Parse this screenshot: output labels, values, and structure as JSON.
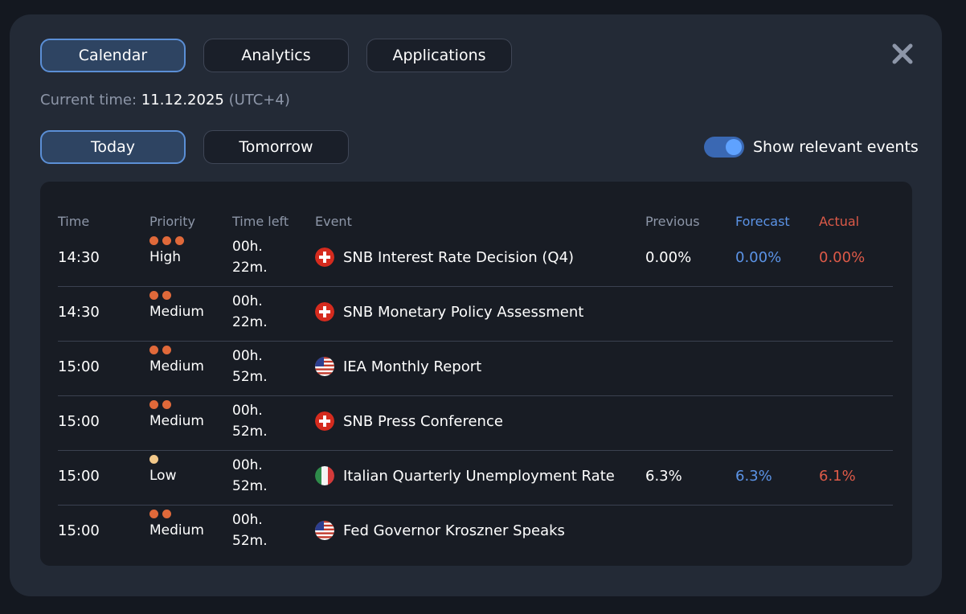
{
  "tabs": [
    {
      "label": "Calendar",
      "active": true
    },
    {
      "label": "Analytics",
      "active": false
    },
    {
      "label": "Applications",
      "active": false
    }
  ],
  "close_icon": "close-icon",
  "current_time": {
    "label": "Current time:",
    "date": "11.12.2025",
    "tz": "(UTC+4)"
  },
  "day_tabs": [
    {
      "label": "Today",
      "active": true
    },
    {
      "label": "Tomorrow",
      "active": false
    }
  ],
  "toggle": {
    "label": "Show relevant events",
    "on": true
  },
  "table": {
    "headers": {
      "time": "Time",
      "priority": "Priority",
      "time_left": "Time left",
      "event": "Event",
      "previous": "Previous",
      "forecast": "Forecast",
      "actual": "Actual"
    },
    "rows": [
      {
        "time": "14:30",
        "priority_level": 3,
        "priority": "High",
        "left_h": "00h.",
        "left_m": "22m.",
        "flag": "switzerland-flag-icon",
        "event": "SNB Interest Rate Decision (Q4)",
        "previous": "0.00%",
        "forecast": "0.00%",
        "actual": "0.00%"
      },
      {
        "time": "14:30",
        "priority_level": 2,
        "priority": "Medium",
        "left_h": "00h.",
        "left_m": "22m.",
        "flag": "switzerland-flag-icon",
        "event": "SNB Monetary Policy Assessment",
        "previous": "",
        "forecast": "",
        "actual": ""
      },
      {
        "time": "15:00",
        "priority_level": 2,
        "priority": "Medium",
        "left_h": "00h.",
        "left_m": "52m.",
        "flag": "usa-flag-icon",
        "event": "IEA Monthly Report",
        "previous": "",
        "forecast": "",
        "actual": ""
      },
      {
        "time": "15:00",
        "priority_level": 2,
        "priority": "Medium",
        "left_h": "00h.",
        "left_m": "52m.",
        "flag": "switzerland-flag-icon",
        "event": "SNB Press Conference",
        "previous": "",
        "forecast": "",
        "actual": ""
      },
      {
        "time": "15:00",
        "priority_level": 1,
        "priority": "Low",
        "left_h": "00h.",
        "left_m": "52m.",
        "flag": "italy-flag-icon",
        "event": "Italian Quarterly Unemployment Rate",
        "previous": "6.3%",
        "forecast": "6.3%",
        "actual": "6.1%"
      },
      {
        "time": "15:00",
        "priority_level": 2,
        "priority": "Medium",
        "left_h": "00h.",
        "left_m": "52m.",
        "flag": "usa-flag-icon",
        "event": "Fed Governor Kroszner Speaks",
        "previous": "",
        "forecast": "",
        "actual": ""
      }
    ]
  },
  "colors": {
    "accent": "#5b8fd6",
    "priority_high": "#e0693a",
    "priority_low": "#f2c88a",
    "forecast": "#5b93e6",
    "actual": "#dd5a48"
  }
}
